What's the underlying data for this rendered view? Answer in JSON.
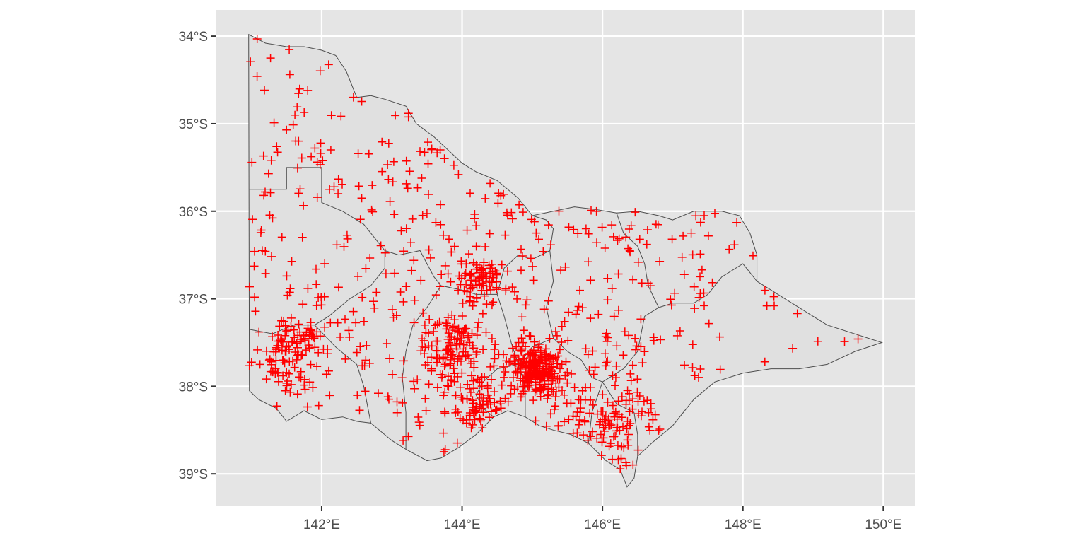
{
  "chart_data": {
    "type": "scatter",
    "map": "point locations over region boundaries",
    "marker": "plus",
    "marker_color": "#ff0000",
    "panel_background": "#e5e5e5",
    "grid": true,
    "grid_color": "#ffffff",
    "region_fill": "#e0e0e0",
    "region_stroke": "#4d4d4d",
    "xlim": [
      140.5,
      150.45
    ],
    "ylim": [
      -39.37,
      -33.7
    ],
    "x_ticks": [
      142,
      144,
      146,
      148,
      150
    ],
    "y_ticks": [
      -34,
      -35,
      -36,
      -37,
      -38,
      -39
    ],
    "x_tick_labels": [
      "142°E",
      "144°E",
      "146°E",
      "148°E",
      "150°E"
    ],
    "y_tick_labels": [
      "34°S",
      "35°S",
      "36°S",
      "37°S",
      "38°S",
      "39°S"
    ],
    "outline": [
      [
        140.96,
        -33.98
      ],
      [
        141.2,
        -34.08
      ],
      [
        141.5,
        -34.12
      ],
      [
        141.75,
        -34.12
      ],
      [
        142.0,
        -34.16
      ],
      [
        142.2,
        -34.22
      ],
      [
        142.35,
        -34.4
      ],
      [
        142.5,
        -34.7
      ],
      [
        142.7,
        -34.68
      ],
      [
        142.9,
        -34.72
      ],
      [
        143.2,
        -34.8
      ],
      [
        143.35,
        -35.0
      ],
      [
        143.6,
        -35.15
      ],
      [
        143.8,
        -35.3
      ],
      [
        144.0,
        -35.45
      ],
      [
        144.2,
        -35.55
      ],
      [
        144.5,
        -35.65
      ],
      [
        144.8,
        -35.85
      ],
      [
        145.0,
        -36.05
      ],
      [
        145.3,
        -36.0
      ],
      [
        145.6,
        -35.95
      ],
      [
        145.9,
        -35.98
      ],
      [
        146.2,
        -36.02
      ],
      [
        146.5,
        -36.0
      ],
      [
        146.8,
        -36.05
      ],
      [
        147.0,
        -36.1
      ],
      [
        147.3,
        -36.0
      ],
      [
        147.7,
        -36.0
      ],
      [
        147.95,
        -36.05
      ],
      [
        148.1,
        -36.25
      ],
      [
        148.2,
        -36.5
      ],
      [
        148.2,
        -36.8
      ],
      [
        148.7,
        -37.05
      ],
      [
        149.2,
        -37.3
      ],
      [
        149.98,
        -37.5
      ],
      [
        149.6,
        -37.6
      ],
      [
        149.2,
        -37.75
      ],
      [
        148.8,
        -37.8
      ],
      [
        148.4,
        -37.8
      ],
      [
        148.0,
        -37.85
      ],
      [
        147.6,
        -37.95
      ],
      [
        147.3,
        -38.15
      ],
      [
        147.0,
        -38.45
      ],
      [
        146.7,
        -38.65
      ],
      [
        146.5,
        -38.8
      ],
      [
        146.45,
        -39.05
      ],
      [
        146.35,
        -39.15
      ],
      [
        146.25,
        -38.95
      ],
      [
        146.05,
        -38.85
      ],
      [
        145.8,
        -38.65
      ],
      [
        145.55,
        -38.55
      ],
      [
        145.3,
        -38.5
      ],
      [
        145.1,
        -38.45
      ],
      [
        144.9,
        -38.35
      ],
      [
        144.65,
        -38.28
      ],
      [
        144.45,
        -38.35
      ],
      [
        144.2,
        -38.55
      ],
      [
        143.95,
        -38.7
      ],
      [
        143.7,
        -38.82
      ],
      [
        143.5,
        -38.85
      ],
      [
        143.2,
        -38.72
      ],
      [
        143.0,
        -38.62
      ],
      [
        142.7,
        -38.42
      ],
      [
        142.5,
        -38.4
      ],
      [
        142.3,
        -38.35
      ],
      [
        142.0,
        -38.38
      ],
      [
        141.75,
        -38.28
      ],
      [
        141.5,
        -38.4
      ],
      [
        141.35,
        -38.25
      ],
      [
        141.1,
        -38.15
      ],
      [
        140.97,
        -38.05
      ]
    ],
    "inner_boundaries": [
      [
        [
          140.97,
          -35.75
        ],
        [
          141.5,
          -35.75
        ],
        [
          141.5,
          -35.5
        ],
        [
          142.0,
          -35.5
        ],
        [
          142.0,
          -35.9
        ],
        [
          142.3,
          -36.0
        ],
        [
          142.6,
          -36.15
        ],
        [
          142.75,
          -36.3
        ],
        [
          142.9,
          -36.45
        ]
      ],
      [
        [
          142.9,
          -36.45
        ],
        [
          143.1,
          -36.5
        ],
        [
          143.4,
          -36.45
        ],
        [
          143.5,
          -36.6
        ],
        [
          143.6,
          -36.75
        ],
        [
          143.7,
          -36.85
        ]
      ],
      [
        [
          143.7,
          -36.85
        ],
        [
          144.0,
          -36.9
        ],
        [
          144.2,
          -36.95
        ],
        [
          144.5,
          -36.95
        ],
        [
          144.6,
          -36.65
        ],
        [
          144.8,
          -36.5
        ],
        [
          145.0,
          -36.55
        ],
        [
          145.25,
          -36.45
        ],
        [
          145.3,
          -36.2
        ],
        [
          145.2,
          -36.1
        ],
        [
          145.0,
          -36.05
        ]
      ],
      [
        [
          140.97,
          -37.35
        ],
        [
          141.3,
          -37.4
        ],
        [
          141.6,
          -37.3
        ],
        [
          141.9,
          -37.3
        ],
        [
          142.1,
          -37.2
        ],
        [
          142.4,
          -37.0
        ],
        [
          142.7,
          -36.85
        ],
        [
          142.9,
          -36.65
        ],
        [
          142.9,
          -36.45
        ]
      ],
      [
        [
          141.9,
          -37.3
        ],
        [
          142.2,
          -37.55
        ],
        [
          142.5,
          -37.75
        ],
        [
          142.6,
          -38.0
        ],
        [
          142.7,
          -38.42
        ]
      ],
      [
        [
          143.7,
          -36.85
        ],
        [
          143.5,
          -37.1
        ],
        [
          143.3,
          -37.3
        ],
        [
          143.2,
          -37.6
        ],
        [
          143.15,
          -37.9
        ],
        [
          143.2,
          -38.3
        ],
        [
          143.2,
          -38.72
        ]
      ],
      [
        [
          144.5,
          -36.95
        ],
        [
          144.6,
          -37.2
        ],
        [
          144.7,
          -37.5
        ],
        [
          144.8,
          -37.75
        ],
        [
          144.9,
          -38.0
        ],
        [
          144.9,
          -38.35
        ]
      ],
      [
        [
          144.8,
          -37.75
        ],
        [
          144.5,
          -37.8
        ],
        [
          144.3,
          -37.95
        ],
        [
          144.2,
          -38.1
        ],
        [
          144.3,
          -38.25
        ],
        [
          144.45,
          -38.35
        ]
      ],
      [
        [
          145.25,
          -36.45
        ],
        [
          145.3,
          -36.8
        ],
        [
          145.2,
          -37.1
        ],
        [
          145.3,
          -37.45
        ],
        [
          145.5,
          -37.6
        ],
        [
          145.7,
          -37.7
        ],
        [
          145.85,
          -37.9
        ],
        [
          146.0,
          -37.95
        ]
      ],
      [
        [
          145.3,
          -37.45
        ],
        [
          145.0,
          -37.55
        ],
        [
          144.8,
          -37.75
        ]
      ],
      [
        [
          146.0,
          -37.95
        ],
        [
          146.2,
          -38.2
        ],
        [
          146.45,
          -38.3
        ],
        [
          146.5,
          -38.55
        ],
        [
          146.5,
          -38.8
        ]
      ],
      [
        [
          145.8,
          -38.65
        ],
        [
          145.85,
          -38.3
        ],
        [
          146.0,
          -37.95
        ]
      ],
      [
        [
          146.0,
          -37.95
        ],
        [
          146.3,
          -37.8
        ],
        [
          146.5,
          -37.6
        ],
        [
          146.6,
          -37.2
        ],
        [
          146.8,
          -37.1
        ],
        [
          147.0,
          -37.05
        ],
        [
          147.3,
          -37.05
        ],
        [
          147.5,
          -36.95
        ],
        [
          147.7,
          -36.75
        ],
        [
          148.0,
          -36.6
        ],
        [
          148.2,
          -36.8
        ]
      ],
      [
        [
          146.8,
          -37.1
        ],
        [
          146.65,
          -36.85
        ],
        [
          146.6,
          -36.6
        ],
        [
          146.5,
          -36.4
        ],
        [
          146.3,
          -36.25
        ],
        [
          146.2,
          -36.02
        ]
      ]
    ],
    "seed": 20240117,
    "n_points": 1200,
    "x": [],
    "y": []
  }
}
